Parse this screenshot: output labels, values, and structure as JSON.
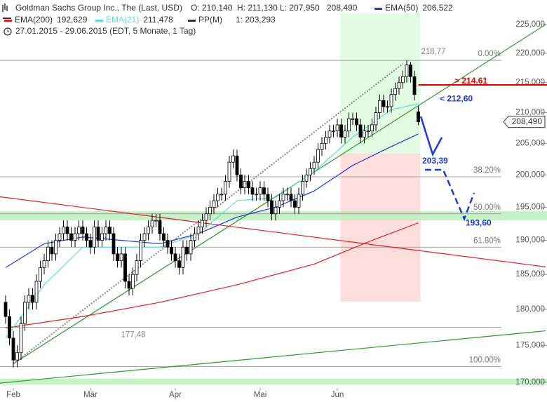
{
  "chart_data": {
    "type": "candlestick",
    "title": "Goldman Sachs Group Inc., The (Last, USD)",
    "quote_labels": [
      "O: 210,140",
      "H: 211,130",
      "L: 207,950",
      "208,490"
    ],
    "subtitle": "27.01.2015 - 29.06.2015 (EDT, 5 Monate, 1 Tag)",
    "pivot": {
      "name": "PP(M)",
      "label": "1: 203,293",
      "color": "#333333"
    },
    "open": [
      181,
      179,
      176,
      173,
      174,
      178,
      181,
      182,
      181,
      184,
      186,
      187,
      189,
      188,
      190,
      191,
      192,
      191,
      190,
      191,
      192,
      191,
      190,
      189,
      192,
      190,
      191,
      192,
      191,
      188,
      187,
      188,
      184,
      183,
      185,
      187,
      190,
      191,
      192,
      193,
      193,
      191,
      190,
      189,
      188,
      187,
      186,
      189,
      188,
      190,
      191,
      192,
      193,
      194,
      195,
      196,
      197,
      197,
      199,
      202,
      203,
      200,
      198,
      199,
      198,
      197,
      197,
      198,
      197,
      196,
      194,
      195,
      196,
      197,
      197,
      196,
      195,
      197,
      199,
      200,
      201,
      202,
      204,
      205,
      206,
      207,
      207,
      208,
      206,
      207,
      209,
      209,
      208,
      206,
      207,
      207,
      208,
      210,
      212,
      211,
      211,
      213,
      214,
      215,
      216,
      218,
      216,
      210.14
    ],
    "high": [
      182,
      180,
      177,
      175,
      179,
      182,
      183,
      183,
      185,
      187,
      188,
      190,
      190,
      191,
      192,
      193,
      193,
      192,
      192,
      193,
      193,
      192,
      191,
      193,
      193,
      192,
      193,
      193,
      192,
      189,
      189,
      189,
      185,
      186,
      188,
      191,
      192,
      193,
      194,
      194,
      194,
      192,
      191,
      190,
      189,
      188,
      190,
      190,
      191,
      192,
      193,
      194,
      195,
      196,
      197,
      198,
      198,
      200,
      203,
      204,
      204,
      201,
      200,
      200,
      199,
      198,
      199,
      199,
      198,
      197,
      196,
      197,
      198,
      198,
      198,
      197,
      198,
      200,
      201,
      202,
      203,
      205,
      206,
      207,
      208,
      208,
      209,
      209,
      208,
      210,
      210,
      210,
      209,
      208,
      208,
      209,
      211,
      213,
      213,
      212,
      214,
      215,
      216,
      217,
      218.77,
      218.5,
      217,
      211.13
    ],
    "low": [
      178,
      175,
      172,
      172,
      173,
      177,
      180,
      180,
      180,
      183,
      185,
      186,
      187,
      187,
      189,
      190,
      190,
      189,
      189,
      190,
      190,
      189,
      188,
      188,
      189,
      189,
      190,
      190,
      187,
      186,
      186,
      183,
      182,
      182,
      184,
      186,
      189,
      190,
      191,
      192,
      190,
      189,
      188,
      187,
      186,
      185,
      185,
      187,
      187,
      189,
      190,
      191,
      192,
      193,
      194,
      195,
      196,
      196,
      198,
      201,
      199,
      197,
      197,
      197,
      196,
      196,
      196,
      196,
      195,
      193,
      193,
      194,
      195,
      196,
      195,
      194,
      194,
      196,
      198,
      199,
      200,
      201,
      203,
      204,
      205,
      206,
      206,
      205,
      205,
      206,
      208,
      207,
      205,
      205,
      206,
      206,
      207,
      209,
      210,
      210,
      210,
      212,
      213,
      214,
      215,
      215,
      212,
      207.95
    ],
    "close": [
      179,
      176,
      173,
      174,
      178,
      181,
      182,
      181,
      184,
      186,
      187,
      189,
      188,
      190,
      191,
      192,
      191,
      190,
      191,
      192,
      191,
      190,
      189,
      192,
      190,
      191,
      192,
      191,
      188,
      187,
      188,
      184,
      183,
      185,
      187,
      190,
      191,
      192,
      193,
      193,
      191,
      190,
      189,
      188,
      187,
      186,
      189,
      188,
      190,
      191,
      192,
      193,
      194,
      195,
      196,
      197,
      197,
      199,
      202,
      203,
      200,
      198,
      199,
      198,
      197,
      197,
      198,
      197,
      196,
      194,
      195,
      196,
      197,
      197,
      196,
      195,
      197,
      199,
      200,
      201,
      202,
      204,
      205,
      206,
      207,
      207,
      208,
      206,
      207,
      209,
      209,
      208,
      206,
      207,
      207,
      208,
      210,
      212,
      211,
      211,
      213,
      214,
      215,
      216,
      218,
      216,
      213,
      208.49
    ],
    "xticks": [
      {
        "value": 2,
        "label": "Feb"
      },
      {
        "value": 22,
        "label": "Mär"
      },
      {
        "value": 44,
        "label": "Apr"
      },
      {
        "value": 66,
        "label": "Mai"
      },
      {
        "value": 86,
        "label": "Jun"
      }
    ],
    "ylim": [
      170,
      225
    ],
    "log_scale": true,
    "yticks": [
      {
        "value": 170,
        "label": "170,000"
      },
      {
        "value": 175,
        "label": "175,000"
      },
      {
        "value": 180,
        "label": "180,000"
      },
      {
        "value": 185,
        "label": "185,000"
      },
      {
        "value": 190,
        "label": "190,000"
      },
      {
        "value": 195,
        "label": "195,000"
      },
      {
        "value": 200,
        "label": "200,000"
      },
      {
        "value": 205,
        "label": "205,000"
      },
      {
        "value": 210,
        "label": "210,000"
      },
      {
        "value": 215,
        "label": "215,000"
      },
      {
        "value": 220,
        "label": "220,000"
      },
      {
        "value": 225,
        "label": "225,000"
      }
    ],
    "series": [
      {
        "name": "EMA(50)",
        "label": "206,522",
        "color": "#1a3cd6",
        "x": [
          0,
          10,
          20,
          30,
          40,
          50,
          60,
          70,
          80,
          90,
          100,
          107
        ],
        "values": [
          186,
          189.5,
          190.5,
          190,
          189.5,
          191,
          193.5,
          195,
          197.5,
          201.5,
          204.5,
          206.522
        ]
      },
      {
        "name": "EMA(200)",
        "label": "192,629",
        "color": "#e02020",
        "x": [
          0,
          20,
          40,
          60,
          80,
          95,
          107
        ],
        "values": [
          177.4,
          179,
          181,
          183.5,
          186.5,
          190,
          192.629
        ]
      },
      {
        "name": "EMA(21)",
        "label": "211,478",
        "color": "#5fe0d0",
        "x": [
          0,
          10,
          20,
          30,
          40,
          50,
          60,
          70,
          80,
          90,
          100,
          107
        ],
        "values": [
          176,
          183.5,
          189,
          189,
          189,
          191,
          196,
          196.5,
          200.5,
          206,
          210.5,
          211.478
        ]
      }
    ],
    "trendlines": [
      {
        "x": [
          2,
          140
        ],
        "values": [
          172.5,
          225
        ],
        "color": "#2a9a2a",
        "style": "solid"
      },
      {
        "x": [
          -1.5,
          140
        ],
        "values": [
          169.9,
          177
        ],
        "color": "#2a9a2a",
        "style": "solid"
      },
      {
        "x": [
          -1.5,
          140
        ],
        "values": [
          196.6,
          186.1
        ],
        "color": "#e02020",
        "style": "solid"
      },
      {
        "x": [
          2,
          103
        ],
        "values": [
          172.5,
          218.2
        ],
        "color": "#888888",
        "style": "dotted"
      }
    ],
    "fib_levels": [
      {
        "value": 218.77,
        "label": "0.00%"
      },
      {
        "value": 199.7,
        "label": "38.20%"
      },
      {
        "value": 194.0,
        "label": "50.00%"
      },
      {
        "value": 189.0,
        "label": "61.80%"
      },
      {
        "value": 172.1,
        "label": "100.00%"
      }
    ],
    "level_labels": [
      {
        "value": 218.77,
        "label": "218,77"
      },
      {
        "value": 177.48,
        "label": "177,48"
      }
    ],
    "bands": [
      [
        193.0,
        194.4
      ],
      [
        169.7,
        170.5
      ]
    ],
    "zones": [
      {
        "from": 203.39,
        "to": 181.1,
        "color": "#ffdede"
      }
    ],
    "targets": [
      {
        "value": 214.61,
        "label": "> 214.61",
        "color": "#e00000"
      },
      {
        "value": 212.6,
        "label": "< 212,60",
        "color": "#1a3cd6"
      },
      {
        "value": 203.39,
        "label": "203,39",
        "color": "#1a3cd6"
      },
      {
        "value": 193.6,
        "label": "193,60",
        "color": "#1a3cd6"
      }
    ]
  }
}
